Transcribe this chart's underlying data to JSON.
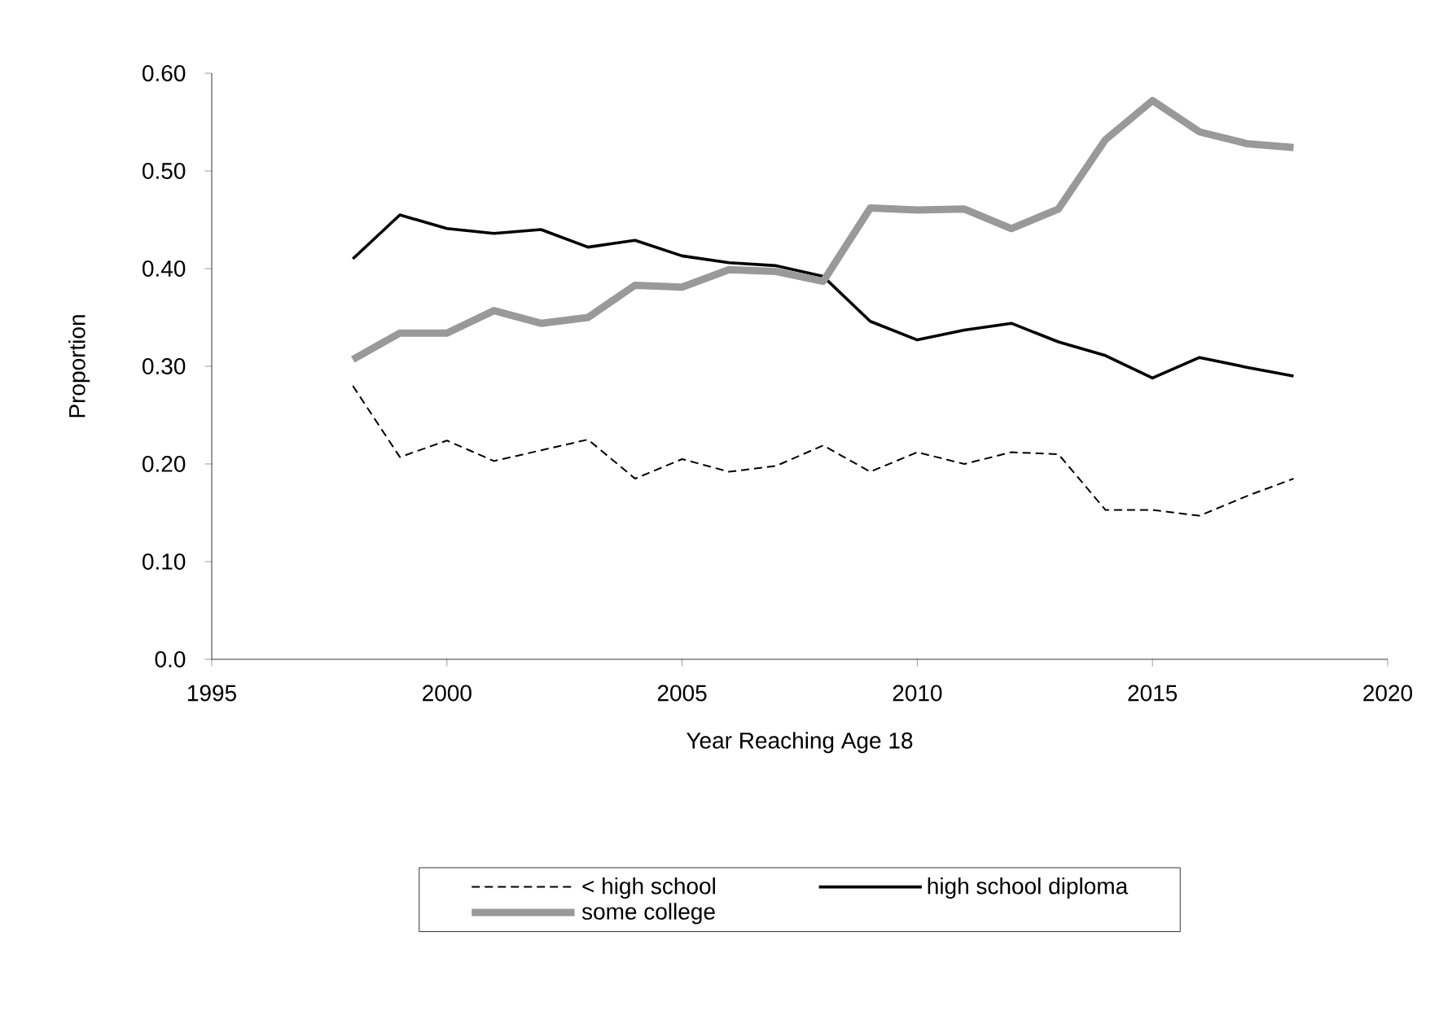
{
  "chart_data": {
    "type": "line",
    "xlabel": "Year Reaching Age 18",
    "ylabel": "Proportion",
    "x": [
      1998,
      1999,
      2000,
      2001,
      2002,
      2003,
      2004,
      2005,
      2006,
      2007,
      2008,
      2009,
      2010,
      2011,
      2012,
      2013,
      2014,
      2015,
      2016,
      2017,
      2018
    ],
    "series": [
      {
        "name": "< high school",
        "color": "#000000",
        "line_style": "dashed",
        "values": [
          0.28,
          0.207,
          0.224,
          0.203,
          0.214,
          0.225,
          0.185,
          0.205,
          0.192,
          0.198,
          0.219,
          0.192,
          0.212,
          0.2,
          0.212,
          0.21,
          0.153,
          0.153,
          0.147,
          0.167,
          0.185
        ]
      },
      {
        "name": "high school diploma",
        "color": "#000000",
        "line_style": "solid",
        "values": [
          0.41,
          0.455,
          0.441,
          0.436,
          0.44,
          0.422,
          0.429,
          0.413,
          0.406,
          0.403,
          0.392,
          0.346,
          0.327,
          0.337,
          0.344,
          0.325,
          0.311,
          0.288,
          0.309,
          0.299,
          0.29
        ]
      },
      {
        "name": "some college",
        "color": "#999999",
        "line_style": "solid",
        "values": [
          0.307,
          0.334,
          0.334,
          0.357,
          0.344,
          0.35,
          0.383,
          0.381,
          0.399,
          0.397,
          0.387,
          0.462,
          0.46,
          0.461,
          0.441,
          0.461,
          0.532,
          0.572,
          0.54,
          0.528,
          0.524
        ]
      }
    ],
    "xlim": [
      1995,
      2020
    ],
    "xticks": [
      1995,
      2000,
      2005,
      2010,
      2015,
      2020
    ],
    "ylim": [
      0,
      0.6
    ],
    "yticks": [
      {
        "value": 0,
        "label": "0.0"
      },
      {
        "value": 0.1,
        "label": "0.10"
      },
      {
        "value": 0.2,
        "label": "0.20"
      },
      {
        "value": 0.3,
        "label": "0.30"
      },
      {
        "value": 0.4,
        "label": "0.40"
      },
      {
        "value": 0.5,
        "label": "0.50"
      },
      {
        "value": 0.6,
        "label": "0.60"
      }
    ],
    "grid": false,
    "legend": "bottom",
    "marker": "none"
  }
}
